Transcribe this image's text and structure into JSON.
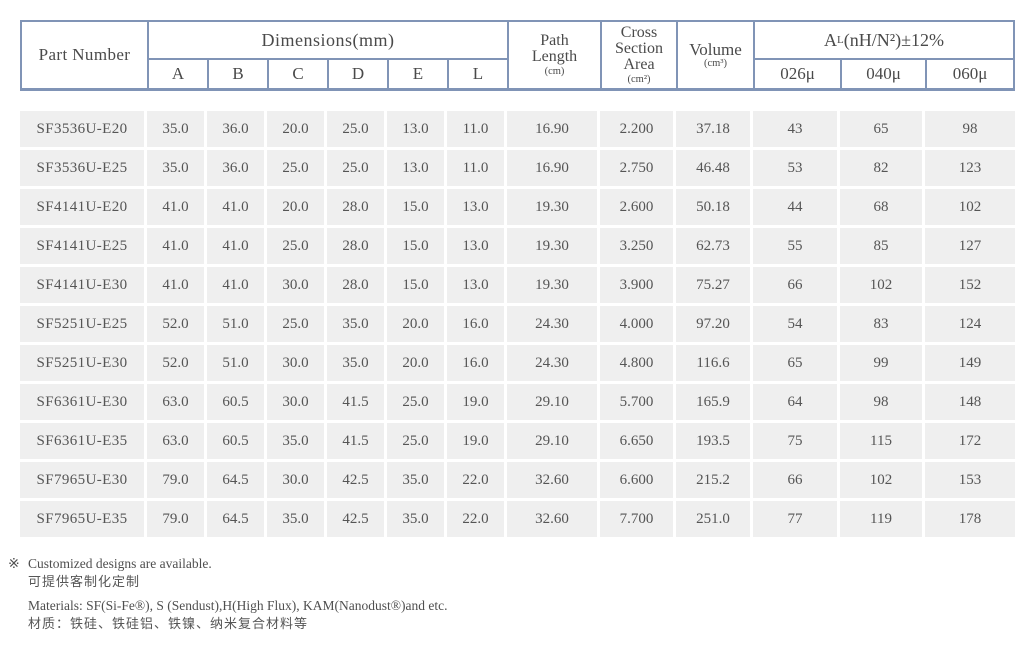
{
  "colors": {
    "border": "#8094b6",
    "row_bg": "#efefef",
    "text": "#555555"
  },
  "table": {
    "header": {
      "part_number": "Part Number",
      "dimensions_group": "Dimensions(mm)",
      "dimension_cols": [
        "A",
        "B",
        "C",
        "D",
        "E",
        "L"
      ],
      "path_length": {
        "label": "Path Length",
        "unit": "(cm)"
      },
      "cross_section": {
        "label": "Cross Section Area",
        "unit": "(cm²)"
      },
      "volume": {
        "label": "Volume",
        "unit": "(cm³)"
      },
      "al_group": {
        "prefix": "A",
        "sub": "L",
        "rest": "(nH/N²)±12%"
      },
      "al_cols": [
        "026μ",
        "040μ",
        "060μ"
      ]
    },
    "rows": [
      [
        "SF3536U-E20",
        "35.0",
        "36.0",
        "20.0",
        "25.0",
        "13.0",
        "11.0",
        "16.90",
        "2.200",
        "37.18",
        "43",
        "65",
        "98"
      ],
      [
        "SF3536U-E25",
        "35.0",
        "36.0",
        "25.0",
        "25.0",
        "13.0",
        "11.0",
        "16.90",
        "2.750",
        "46.48",
        "53",
        "82",
        "123"
      ],
      [
        "SF4141U-E20",
        "41.0",
        "41.0",
        "20.0",
        "28.0",
        "15.0",
        "13.0",
        "19.30",
        "2.600",
        "50.18",
        "44",
        "68",
        "102"
      ],
      [
        "SF4141U-E25",
        "41.0",
        "41.0",
        "25.0",
        "28.0",
        "15.0",
        "13.0",
        "19.30",
        "3.250",
        "62.73",
        "55",
        "85",
        "127"
      ],
      [
        "SF4141U-E30",
        "41.0",
        "41.0",
        "30.0",
        "28.0",
        "15.0",
        "13.0",
        "19.30",
        "3.900",
        "75.27",
        "66",
        "102",
        "152"
      ],
      [
        "SF5251U-E25",
        "52.0",
        "51.0",
        "25.0",
        "35.0",
        "20.0",
        "16.0",
        "24.30",
        "4.000",
        "97.20",
        "54",
        "83",
        "124"
      ],
      [
        "SF5251U-E30",
        "52.0",
        "51.0",
        "30.0",
        "35.0",
        "20.0",
        "16.0",
        "24.30",
        "4.800",
        "116.6",
        "65",
        "99",
        "149"
      ],
      [
        "SF6361U-E30",
        "63.0",
        "60.5",
        "30.0",
        "41.5",
        "25.0",
        "19.0",
        "29.10",
        "5.700",
        "165.9",
        "64",
        "98",
        "148"
      ],
      [
        "SF6361U-E35",
        "63.0",
        "60.5",
        "35.0",
        "41.5",
        "25.0",
        "19.0",
        "29.10",
        "6.650",
        "193.5",
        "75",
        "115",
        "172"
      ],
      [
        "SF7965U-E30",
        "79.0",
        "64.5",
        "30.0",
        "42.5",
        "35.0",
        "22.0",
        "32.60",
        "6.600",
        "215.2",
        "66",
        "102",
        "153"
      ],
      [
        "SF7965U-E35",
        "79.0",
        "64.5",
        "35.0",
        "42.5",
        "35.0",
        "22.0",
        "32.60",
        "7.700",
        "251.0",
        "77",
        "119",
        "178"
      ]
    ]
  },
  "footnotes": {
    "marker": "※",
    "custom_en": "Customized designs are available.",
    "custom_zh": "可提供客制化定制",
    "materials_en": "Materials: SF(Si-Fe®), S (Sendust),H(High Flux), KAM(Nanodust®)and etc.",
    "materials_zh": "材质：铁硅、铁硅铝、铁镍、纳米复合材料等"
  }
}
